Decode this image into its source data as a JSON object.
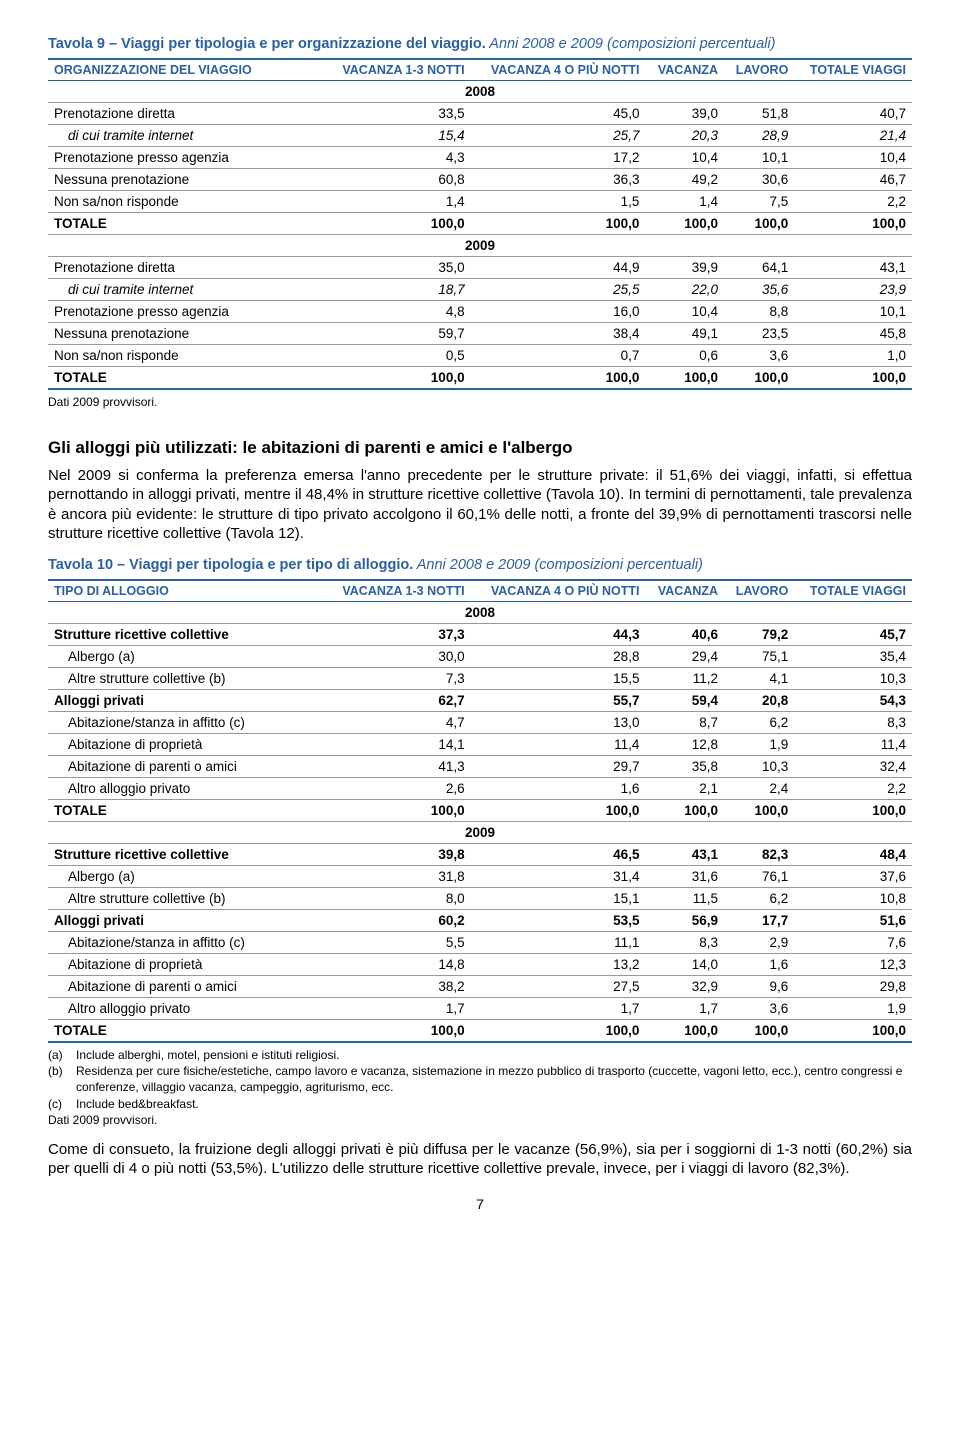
{
  "table9": {
    "title_prefix": "Tavola 9 – Viaggi per tipologia e per organizzazione del viaggio.",
    "title_italic": " Anni 2008 e 2009 (composizioni percentuali)",
    "col_label": "ORGANIZZAZIONE DEL VIAGGIO",
    "headers": [
      "VACANZA\n1-3 NOTTI",
      "VACANZA\n4 O PIÙ NOTTI",
      "VACANZA",
      "LAVORO",
      "TOTALE\nVIAGGI"
    ],
    "year1": "2008",
    "year2": "2009",
    "rows2008": [
      {
        "label": "Prenotazione diretta",
        "v": [
          "33,5",
          "45,0",
          "39,0",
          "51,8",
          "40,7"
        ]
      },
      {
        "label": "di cui tramite internet",
        "v": [
          "15,4",
          "25,7",
          "20,3",
          "28,9",
          "21,4"
        ],
        "italic": true,
        "indent": true
      },
      {
        "label": "Prenotazione presso agenzia",
        "v": [
          "4,3",
          "17,2",
          "10,4",
          "10,1",
          "10,4"
        ]
      },
      {
        "label": "Nessuna prenotazione",
        "v": [
          "60,8",
          "36,3",
          "49,2",
          "30,6",
          "46,7"
        ]
      },
      {
        "label": "Non sa/non risponde",
        "v": [
          "1,4",
          "1,5",
          "1,4",
          "7,5",
          "2,2"
        ]
      },
      {
        "label": "TOTALE",
        "v": [
          "100,0",
          "100,0",
          "100,0",
          "100,0",
          "100,0"
        ],
        "bold": true
      }
    ],
    "rows2009": [
      {
        "label": "Prenotazione diretta",
        "v": [
          "35,0",
          "44,9",
          "39,9",
          "64,1",
          "43,1"
        ]
      },
      {
        "label": "di cui tramite internet",
        "v": [
          "18,7",
          "25,5",
          "22,0",
          "35,6",
          "23,9"
        ],
        "italic": true,
        "indent": true
      },
      {
        "label": "Prenotazione presso agenzia",
        "v": [
          "4,8",
          "16,0",
          "10,4",
          "8,8",
          "10,1"
        ]
      },
      {
        "label": "Nessuna prenotazione",
        "v": [
          "59,7",
          "38,4",
          "49,1",
          "23,5",
          "45,8"
        ]
      },
      {
        "label": "Non sa/non risponde",
        "v": [
          "0,5",
          "0,7",
          "0,6",
          "3,6",
          "1,0"
        ]
      },
      {
        "label": "TOTALE",
        "v": [
          "100,0",
          "100,0",
          "100,0",
          "100,0",
          "100,0"
        ],
        "bold": true,
        "last": true
      }
    ],
    "footnote": "Dati 2009 provvisori."
  },
  "heading": "Gli alloggi più utilizzati: le abitazioni di parenti e amici e l'albergo",
  "para1": "Nel 2009 si conferma la preferenza emersa l'anno precedente per le strutture private: il 51,6% dei viaggi, infatti, si effettua pernottando in alloggi privati, mentre il 48,4% in strutture ricettive collettive (Tavola 10). In termini di pernottamenti, tale prevalenza è ancora più evidente: le strutture di tipo privato accolgono il 60,1% delle notti, a fronte del 39,9% di pernottamenti trascorsi nelle strutture ricettive collettive (Tavola 12).",
  "table10": {
    "title_prefix": "Tavola 10 – Viaggi per tipologia e per tipo di alloggio.",
    "title_italic": " Anni 2008 e 2009 (composizioni percentuali)",
    "col_label": "TIPO DI ALLOGGIO",
    "headers": [
      "VACANZA\n1-3 NOTTI",
      "VACANZA\n4 O PIÙ NOTTI",
      "VACANZA",
      "LAVORO",
      "TOTALE VIAGGI"
    ],
    "year1": "2008",
    "year2": "2009",
    "rows2008": [
      {
        "label": "Strutture ricettive collettive",
        "v": [
          "37,3",
          "44,3",
          "40,6",
          "79,2",
          "45,7"
        ],
        "bold": true
      },
      {
        "label": "Albergo (a)",
        "v": [
          "30,0",
          "28,8",
          "29,4",
          "75,1",
          "35,4"
        ],
        "indent": true
      },
      {
        "label": "Altre strutture collettive (b)",
        "v": [
          "7,3",
          "15,5",
          "11,2",
          "4,1",
          "10,3"
        ],
        "indent": true
      },
      {
        "label": "Alloggi privati",
        "v": [
          "62,7",
          "55,7",
          "59,4",
          "20,8",
          "54,3"
        ],
        "bold": true
      },
      {
        "label": "Abitazione/stanza in affitto (c)",
        "v": [
          "4,7",
          "13,0",
          "8,7",
          "6,2",
          "8,3"
        ],
        "indent": true
      },
      {
        "label": "Abitazione di proprietà",
        "v": [
          "14,1",
          "11,4",
          "12,8",
          "1,9",
          "11,4"
        ],
        "indent": true
      },
      {
        "label": "Abitazione di parenti o amici",
        "v": [
          "41,3",
          "29,7",
          "35,8",
          "10,3",
          "32,4"
        ],
        "indent": true
      },
      {
        "label": "Altro alloggio privato",
        "v": [
          "2,6",
          "1,6",
          "2,1",
          "2,4",
          "2,2"
        ],
        "indent": true
      },
      {
        "label": "TOTALE",
        "v": [
          "100,0",
          "100,0",
          "100,0",
          "100,0",
          "100,0"
        ],
        "bold": true
      }
    ],
    "rows2009": [
      {
        "label": "Strutture ricettive collettive",
        "v": [
          "39,8",
          "46,5",
          "43,1",
          "82,3",
          "48,4"
        ],
        "bold": true
      },
      {
        "label": "Albergo (a)",
        "v": [
          "31,8",
          "31,4",
          "31,6",
          "76,1",
          "37,6"
        ],
        "indent": true
      },
      {
        "label": "Altre strutture collettive (b)",
        "v": [
          "8,0",
          "15,1",
          "11,5",
          "6,2",
          "10,8"
        ],
        "indent": true
      },
      {
        "label": "Alloggi privati",
        "v": [
          "60,2",
          "53,5",
          "56,9",
          "17,7",
          "51,6"
        ],
        "bold": true
      },
      {
        "label": "Abitazione/stanza in affitto (c)",
        "v": [
          "5,5",
          "11,1",
          "8,3",
          "2,9",
          "7,6"
        ],
        "indent": true
      },
      {
        "label": "Abitazione di proprietà",
        "v": [
          "14,8",
          "13,2",
          "14,0",
          "1,6",
          "12,3"
        ],
        "indent": true
      },
      {
        "label": "Abitazione di parenti o amici",
        "v": [
          "38,2",
          "27,5",
          "32,9",
          "9,6",
          "29,8"
        ],
        "indent": true
      },
      {
        "label": "Altro alloggio privato",
        "v": [
          "1,7",
          "1,7",
          "1,7",
          "3,6",
          "1,9"
        ],
        "indent": true
      },
      {
        "label": "TOTALE",
        "v": [
          "100,0",
          "100,0",
          "100,0",
          "100,0",
          "100,0"
        ],
        "bold": true,
        "last": true
      }
    ],
    "footnotes": [
      {
        "tag": "(a)",
        "text": "Include alberghi, motel, pensioni e istituti religiosi."
      },
      {
        "tag": "(b)",
        "text": "Residenza per cure fisiche/estetiche, campo lavoro e vacanza, sistemazione in mezzo pubblico di trasporto (cuccette, vagoni letto, ecc.), centro congressi e conferenze, villaggio vacanza, campeggio, agriturismo, ecc."
      },
      {
        "tag": "(c)",
        "text": "Include bed&breakfast."
      }
    ],
    "footnote_final": "Dati 2009 provvisori."
  },
  "para2": "Come di consueto, la fruizione degli alloggi privati è più diffusa per le vacanze (56,9%), sia per i soggiorni di 1-3 notti (60,2%) sia per quelli di 4 o più notti (53,5%). L'utilizzo delle strutture ricettive collettive prevale, invece, per i viaggi di lavoro (82,3%).",
  "page_num": "7"
}
